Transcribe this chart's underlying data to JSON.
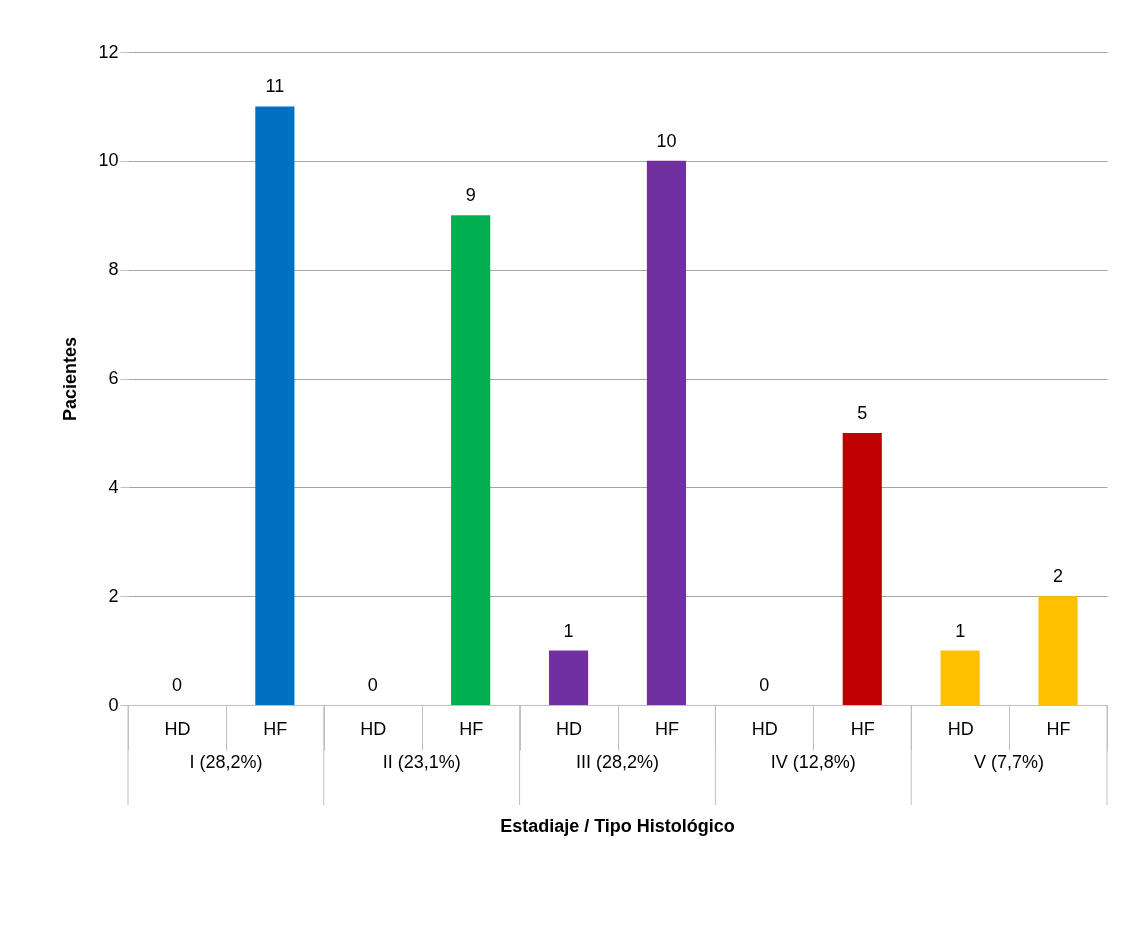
{
  "chart_data": {
    "type": "bar",
    "xlabel": "Estadiaje / Tipo Histológico",
    "ylabel": "Pacientes",
    "categories": [
      "HD",
      "HF",
      "HD",
      "HF",
      "HD",
      "HF",
      "HD",
      "HF",
      "HD",
      "HF"
    ],
    "values": [
      0,
      11,
      0,
      9,
      1,
      10,
      0,
      5,
      1,
      2
    ],
    "colors": [
      "#0070c0",
      "#0070c0",
      "#00b050",
      "#00b050",
      "#7030a0",
      "#7030a0",
      "#c00000",
      "#c00000",
      "#ffc000",
      "#ffc000"
    ],
    "annotations": [
      "I (28,2%)",
      "II (23,1%)",
      "III (28,2%)",
      "IV (12,8%)",
      "V (7,7%)"
    ],
    "ylim": [
      0,
      12
    ],
    "yticks": [
      0,
      2,
      4,
      6,
      8,
      10,
      12
    ],
    "grid": "y",
    "data_labels": true
  }
}
